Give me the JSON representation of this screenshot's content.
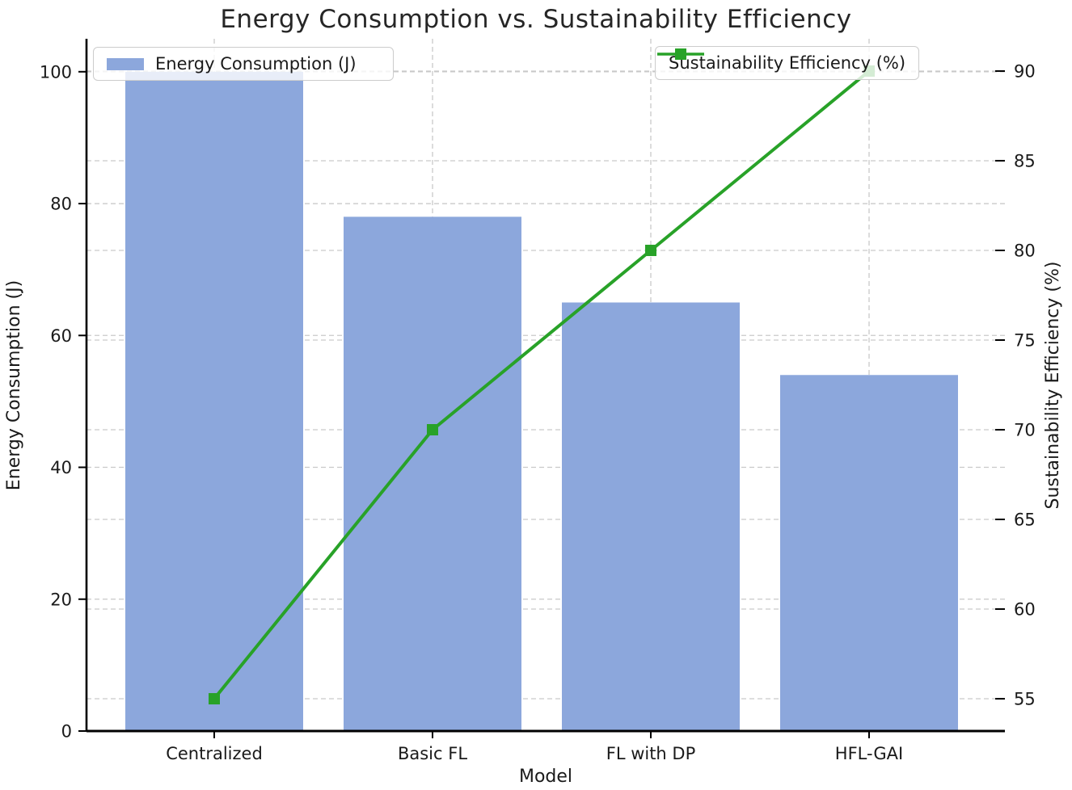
{
  "title": "Energy Consumption vs. Sustainability Efficiency",
  "legends": {
    "bar_label": "Energy Consumption (J)",
    "line_label": "Sustainability Efficiency (%)"
  },
  "chart_data": {
    "type": "bar",
    "subtype": "dual-axis bar + line (twin y-axes)",
    "categories": [
      "Centralized",
      "Basic FL",
      "FL with DP",
      "HFL-GAI"
    ],
    "series": [
      {
        "name": "Energy Consumption (J)",
        "type": "bar",
        "axis": "left",
        "values": [
          100,
          78,
          65,
          54
        ]
      },
      {
        "name": "Sustainability Efficiency (%)",
        "type": "line",
        "axis": "right",
        "values": [
          55,
          70,
          80,
          90
        ],
        "marker": "square"
      }
    ],
    "title": "Energy Consumption vs. Sustainability Efficiency",
    "xlabel": "Model",
    "ylabel_left": "Energy Consumption (J)",
    "ylabel_right": "Sustainability Efficiency (%)",
    "yticks_left": [
      0,
      20,
      40,
      60,
      80,
      100
    ],
    "yticks_right": [
      55,
      60,
      65,
      70,
      75,
      80,
      85,
      90
    ],
    "ylim_left": [
      0,
      105
    ],
    "ylim_right": [
      53.2,
      91.8
    ],
    "grid": "dashed gridlines for both y-axes ticks and vertical lines at each category",
    "legend_position_bar": "upper left",
    "legend_position_line": "upper right"
  },
  "colors": {
    "bar_fill": "#8CA7DC",
    "line_stroke": "#28A228",
    "grid": "#C9C9C9",
    "axis": "#000000",
    "text": "#1A1A1A",
    "legend_border": "#CCCCCC",
    "background": "#FFFFFF"
  }
}
